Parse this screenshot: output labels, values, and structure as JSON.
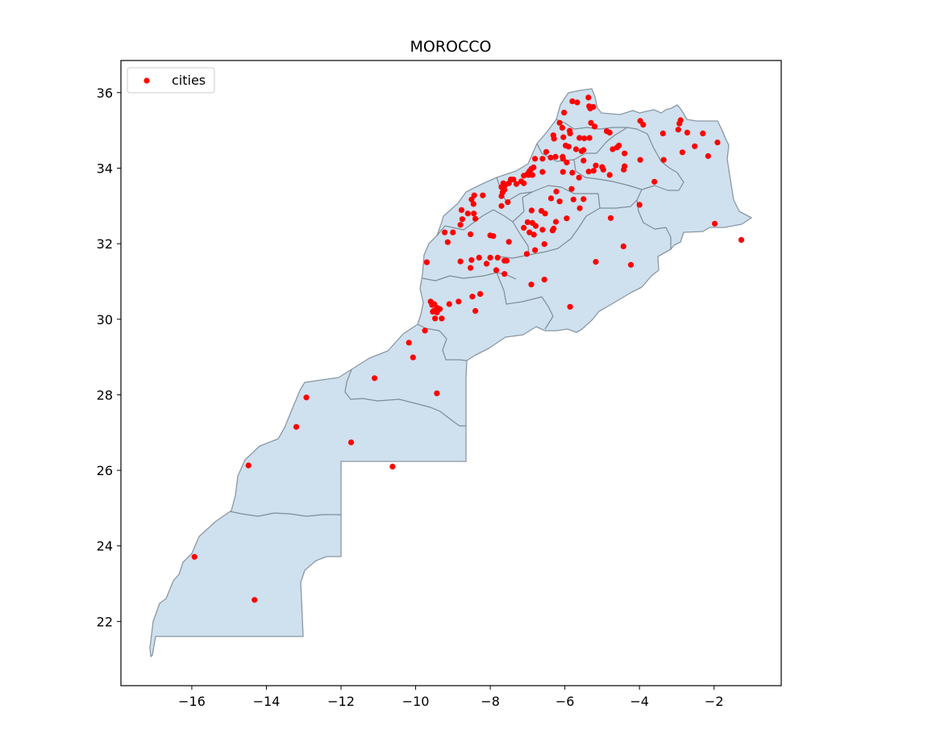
{
  "chart_data": {
    "type": "scatter",
    "title": "MOROCCO",
    "xlabel": "",
    "ylabel": "",
    "xlim": [
      -17.9,
      -0.2
    ],
    "ylim": [
      20.3,
      36.85
    ],
    "xticks": [
      -16,
      -14,
      -12,
      -10,
      -8,
      -6,
      -4,
      -2
    ],
    "yticks": [
      22,
      24,
      26,
      28,
      30,
      32,
      34,
      36
    ],
    "xtick_labels": [
      "−16",
      "−14",
      "−12",
      "−10",
      "−8",
      "−6",
      "−4",
      "−2"
    ],
    "ytick_labels": [
      "22",
      "24",
      "26",
      "28",
      "30",
      "32",
      "34",
      "36"
    ],
    "grid": false,
    "legend": {
      "position": "upper-left",
      "entries": [
        "cities"
      ]
    },
    "colors": {
      "fill": "#cfe0ee",
      "edge": "#7f8c97",
      "points": "#ff0000"
    },
    "series": [
      {
        "name": "cities",
        "points": [
          [
            -5.8,
            35.77
          ],
          [
            -5.67,
            35.74
          ],
          [
            -5.37,
            35.87
          ],
          [
            -5.35,
            35.64
          ],
          [
            -5.32,
            35.58
          ],
          [
            -5.24,
            35.62
          ],
          [
            -6.02,
            35.47
          ],
          [
            -5.3,
            35.2
          ],
          [
            -5.2,
            35.1
          ],
          [
            -6.14,
            35.2
          ],
          [
            -6.07,
            35.07
          ],
          [
            -5.87,
            34.99
          ],
          [
            -5.86,
            34.92
          ],
          [
            -6.31,
            34.87
          ],
          [
            -6.29,
            34.78
          ],
          [
            -6.04,
            34.82
          ],
          [
            -5.61,
            34.8
          ],
          [
            -5.48,
            34.79
          ],
          [
            -5.34,
            34.8
          ],
          [
            -4.88,
            34.98
          ],
          [
            -4.8,
            34.94
          ],
          [
            -4.72,
            34.5
          ],
          [
            -4.6,
            34.55
          ],
          [
            -4.55,
            34.6
          ],
          [
            -4.4,
            34.39
          ],
          [
            -3.98,
            35.25
          ],
          [
            -3.9,
            35.15
          ],
          [
            -3.37,
            34.92
          ],
          [
            -2.93,
            35.18
          ],
          [
            -2.9,
            35.27
          ],
          [
            -2.96,
            35.02
          ],
          [
            -2.72,
            34.94
          ],
          [
            -2.3,
            34.92
          ],
          [
            -2.52,
            34.58
          ],
          [
            -1.91,
            34.68
          ],
          [
            -2.16,
            34.32
          ],
          [
            -2.85,
            34.42
          ],
          [
            -3.35,
            34.22
          ],
          [
            -3.98,
            34.22
          ],
          [
            -3.6,
            33.64
          ],
          [
            -4.42,
            33.96
          ],
          [
            -4.4,
            34.05
          ],
          [
            -4.8,
            33.82
          ],
          [
            -5.0,
            34.03
          ],
          [
            -4.97,
            33.96
          ],
          [
            -5.17,
            34.07
          ],
          [
            -5.23,
            33.93
          ],
          [
            -5.36,
            33.91
          ],
          [
            -5.5,
            34.2
          ],
          [
            -5.55,
            34.45
          ],
          [
            -5.7,
            34.5
          ],
          [
            -5.5,
            34.48
          ],
          [
            -5.9,
            34.57
          ],
          [
            -5.98,
            34.6
          ],
          [
            -6.06,
            34.3
          ],
          [
            -6.6,
            34.25
          ],
          [
            -6.8,
            34.25
          ],
          [
            -6.84,
            34.02
          ],
          [
            -6.9,
            33.98
          ],
          [
            -6.95,
            33.92
          ],
          [
            -7.0,
            33.85
          ],
          [
            -6.92,
            33.83
          ],
          [
            -6.98,
            33.82
          ],
          [
            -7.1,
            33.8
          ],
          [
            -7.17,
            33.65
          ],
          [
            -7.38,
            33.7
          ],
          [
            -7.5,
            33.6
          ],
          [
            -7.6,
            33.55
          ],
          [
            -7.62,
            33.43
          ],
          [
            -7.67,
            33.36
          ],
          [
            -7.7,
            33.26
          ],
          [
            -7.53,
            33.1
          ],
          [
            -7.7,
            33.0
          ],
          [
            -8.2,
            33.28
          ],
          [
            -8.43,
            33.28
          ],
          [
            -8.5,
            33.17
          ],
          [
            -8.45,
            33.05
          ],
          [
            -8.44,
            32.8
          ],
          [
            -8.4,
            32.66
          ],
          [
            -8.77,
            32.89
          ],
          [
            -8.75,
            32.65
          ],
          [
            -9.22,
            32.3
          ],
          [
            -9.14,
            32.04
          ],
          [
            -8.53,
            32.25
          ],
          [
            -8.0,
            32.22
          ],
          [
            -7.92,
            32.2
          ],
          [
            -9.7,
            31.51
          ],
          [
            -8.8,
            31.53
          ],
          [
            -8.5,
            31.57
          ],
          [
            -8.3,
            31.63
          ],
          [
            -8.1,
            31.47
          ],
          [
            -8.0,
            31.63
          ],
          [
            -7.8,
            31.63
          ],
          [
            -7.62,
            31.55
          ],
          [
            -7.56,
            31.55
          ],
          [
            -7.62,
            31.2
          ],
          [
            -7.84,
            31.3
          ],
          [
            -6.9,
            30.92
          ],
          [
            -6.55,
            31.05
          ],
          [
            -5.86,
            30.33
          ],
          [
            -5.17,
            31.52
          ],
          [
            -4.43,
            31.93
          ],
          [
            -4.23,
            31.44
          ],
          [
            -4.77,
            32.68
          ],
          [
            -4.0,
            33.03
          ],
          [
            -5.77,
            33.17
          ],
          [
            -5.5,
            33.18
          ],
          [
            -5.6,
            32.94
          ],
          [
            -5.95,
            32.67
          ],
          [
            -5.82,
            33.45
          ],
          [
            -6.23,
            33.38
          ],
          [
            -6.37,
            33.2
          ],
          [
            -6.14,
            33.12
          ],
          [
            -6.63,
            32.87
          ],
          [
            -6.53,
            32.8
          ],
          [
            -6.89,
            32.88
          ],
          [
            -6.87,
            32.55
          ],
          [
            -7.0,
            32.57
          ],
          [
            -7.1,
            32.42
          ],
          [
            -6.78,
            32.47
          ],
          [
            -6.6,
            32.37
          ],
          [
            -6.95,
            32.3
          ],
          [
            -6.83,
            32.24
          ],
          [
            -6.33,
            32.35
          ],
          [
            -6.3,
            32.4
          ],
          [
            -6.24,
            32.58
          ],
          [
            -6.55,
            31.99
          ],
          [
            -6.8,
            31.83
          ],
          [
            -7.02,
            31.73
          ],
          [
            -7.5,
            32.05
          ],
          [
            -8.53,
            31.36
          ],
          [
            -8.27,
            30.67
          ],
          [
            -8.48,
            30.6
          ],
          [
            -8.85,
            30.47
          ],
          [
            -9.1,
            30.4
          ],
          [
            -9.6,
            30.47
          ],
          [
            -9.5,
            30.4
          ],
          [
            -9.56,
            30.38
          ],
          [
            -9.42,
            30.3
          ],
          [
            -9.35,
            30.27
          ],
          [
            -9.5,
            30.23
          ],
          [
            -9.43,
            30.18
          ],
          [
            -9.54,
            30.2
          ],
          [
            -9.3,
            30.02
          ],
          [
            -9.48,
            30.02
          ],
          [
            -8.4,
            30.22
          ],
          [
            -9.75,
            29.7
          ],
          [
            -10.18,
            29.38
          ],
          [
            -10.07,
            28.99
          ],
          [
            -9.43,
            28.04
          ],
          [
            -11.1,
            28.44
          ],
          [
            -12.93,
            27.93
          ],
          [
            -13.2,
            27.15
          ],
          [
            -11.73,
            26.74
          ],
          [
            -10.62,
            26.1
          ],
          [
            -14.48,
            26.13
          ],
          [
            -15.93,
            23.71
          ],
          [
            -14.32,
            22.57
          ],
          [
            -1.98,
            32.53
          ],
          [
            -1.27,
            32.1
          ],
          [
            -6.5,
            34.43
          ],
          [
            -6.25,
            34.3
          ],
          [
            -6.38,
            34.28
          ],
          [
            -6.05,
            34.25
          ],
          [
            -5.8,
            33.88
          ],
          [
            -5.62,
            33.75
          ],
          [
            -6.6,
            33.9
          ],
          [
            -6.87,
            33.82
          ],
          [
            -7.1,
            33.6
          ],
          [
            -7.3,
            33.58
          ],
          [
            -7.45,
            33.7
          ],
          [
            -7.65,
            33.6
          ],
          [
            -7.7,
            33.5
          ],
          [
            -8.6,
            32.8
          ],
          [
            -8.8,
            32.5
          ],
          [
            -9.0,
            32.3
          ],
          [
            -6.05,
            33.9
          ],
          [
            -5.95,
            34.15
          ]
        ]
      }
    ]
  }
}
